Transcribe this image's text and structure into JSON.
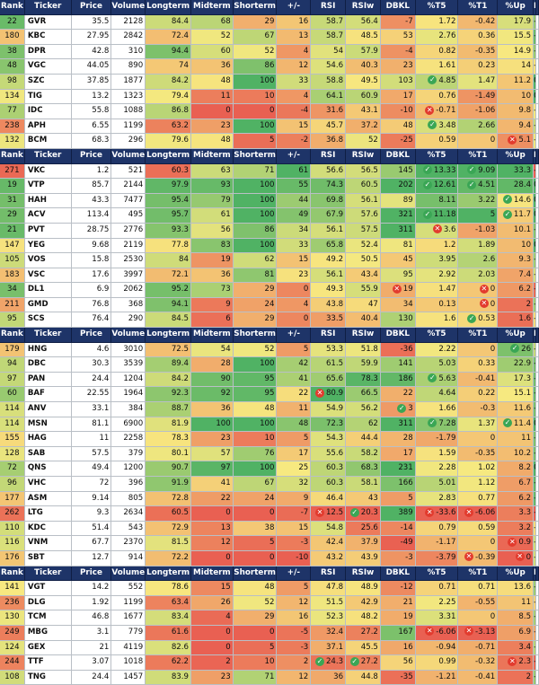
{
  "headers": [
    "Rank",
    "Ticker",
    "Price",
    "Volume",
    "Longterm",
    "Midterm",
    "Shorterm",
    "+/-",
    "RSI",
    "RSIw",
    "DBKL",
    "%T5",
    "%T1",
    "%Up",
    "MDF"
  ],
  "marks": {
    "ok": "✓",
    "no": "✕"
  },
  "sections": [
    {
      "rows": [
        [
          "22",
          "GVR",
          "35.5",
          "2128",
          "84.4",
          "68",
          "29",
          "16",
          "58.7",
          "56.4",
          "-7",
          "1.72",
          "-0.42",
          "17.9",
          "-2.5"
        ],
        [
          "180",
          "KBC",
          "27.95",
          "2842",
          "72.4",
          "52",
          "67",
          "13",
          "58.7",
          "48.5",
          "53",
          "2.76",
          "0.36",
          "15.5",
          "-0.9"
        ],
        [
          "38",
          "DPR",
          "42.8",
          "310",
          "94.4",
          "60",
          "52",
          "4",
          "54",
          "57.9",
          "-4",
          "0.82",
          "-0.35",
          "14.9",
          "-2.6"
        ],
        [
          "48",
          "VGC",
          "44.05",
          "890",
          "74",
          "36",
          "86",
          "12",
          "54.6",
          "40.3",
          "23",
          "1.61",
          "0.23",
          "14",
          "-6.3"
        ],
        [
          "98",
          "SZC",
          "37.85",
          "1877",
          "84.2",
          "48",
          "100",
          "33",
          "58.8",
          "49.5",
          "103",
          "4.85",
          "1.47",
          "11.2",
          "0"
        ],
        [
          "134",
          "TIG",
          "13.2",
          "1323",
          "79.4",
          "11",
          "10",
          "4",
          "64.1",
          "60.9",
          "17",
          "0.76",
          "-1.49",
          "10",
          "0"
        ],
        [
          "77",
          "IDC",
          "55.8",
          "1088",
          "86.8",
          "0",
          "0",
          "-4",
          "31.6",
          "43.1",
          "-10",
          "-0.71",
          "-1.06",
          "9.8",
          "-5.9"
        ],
        [
          "238",
          "APH",
          "6.55",
          "1199",
          "63.2",
          "23",
          "100",
          "15",
          "45.7",
          "37.2",
          "48",
          "3.48",
          "2.66",
          "9.4",
          "-4.3"
        ],
        [
          "132",
          "BCM",
          "68.3",
          "296",
          "79.6",
          "48",
          "5",
          "-2",
          "36.8",
          "52",
          "-25",
          "0.59",
          "0",
          "5.1",
          "-5.8"
        ]
      ]
    },
    {
      "rows": [
        [
          "271",
          "VKC",
          "1.2",
          "521",
          "60.3",
          "63",
          "71",
          "61",
          "56.6",
          "56.5",
          "145",
          "13.33",
          "9.09",
          "33.3",
          "-29.4"
        ],
        [
          "19",
          "VTP",
          "85.7",
          "2144",
          "97.9",
          "93",
          "100",
          "55",
          "74.3",
          "60.5",
          "202",
          "12.61",
          "4.51",
          "28.4",
          "0"
        ],
        [
          "31",
          "HAH",
          "43.3",
          "7477",
          "95.4",
          "79",
          "100",
          "44",
          "69.8",
          "56.1",
          "89",
          "8.11",
          "3.22",
          "14.6",
          "0"
        ],
        [
          "29",
          "ACV",
          "113.4",
          "495",
          "95.7",
          "61",
          "100",
          "49",
          "67.9",
          "57.6",
          "321",
          "11.18",
          "5",
          "11.7",
          "0"
        ],
        [
          "21",
          "PVT",
          "28.75",
          "2776",
          "93.3",
          "56",
          "86",
          "34",
          "56.1",
          "57.5",
          "311",
          "3.6",
          "-1.03",
          "10.1",
          "-1.9"
        ],
        [
          "147",
          "YEG",
          "9.68",
          "2119",
          "77.8",
          "83",
          "100",
          "33",
          "65.8",
          "52.4",
          "81",
          "1.2",
          "1.89",
          "10",
          "0"
        ],
        [
          "105",
          "VOS",
          "15.8",
          "2530",
          "84",
          "19",
          "62",
          "15",
          "49.2",
          "50.5",
          "45",
          "3.95",
          "2.6",
          "9.3",
          "-2.8"
        ],
        [
          "183",
          "VSC",
          "17.6",
          "3997",
          "72.1",
          "36",
          "81",
          "23",
          "56.1",
          "43.4",
          "95",
          "2.92",
          "2.03",
          "7.4",
          "-4.8"
        ],
        [
          "34",
          "DL1",
          "6.9",
          "2062",
          "95.2",
          "73",
          "29",
          "0",
          "49.3",
          "55.9",
          "19",
          "1.47",
          "0",
          "6.2",
          "-11.5"
        ],
        [
          "211",
          "GMD",
          "76.8",
          "368",
          "94.1",
          "9",
          "24",
          "4",
          "43.8",
          "47",
          "34",
          "0.13",
          "0",
          "2",
          "-2.8"
        ],
        [
          "95",
          "SCS",
          "76.4",
          "290",
          "84.5",
          "6",
          "29",
          "0",
          "33.5",
          "40.4",
          "130",
          "1.6",
          "0.53",
          "1.6",
          "-6.6"
        ]
      ]
    },
    {
      "rows": [
        [
          "179",
          "HNG",
          "4.6",
          "3010",
          "72.5",
          "54",
          "52",
          "5",
          "53.3",
          "51.8",
          "-36",
          "2.22",
          "0",
          "26",
          "-4.2"
        ],
        [
          "94",
          "DBC",
          "30.3",
          "3539",
          "89.4",
          "28",
          "100",
          "42",
          "61.5",
          "59.9",
          "141",
          "5.03",
          "0.33",
          "22.9",
          "-1.4"
        ],
        [
          "97",
          "PAN",
          "24.4",
          "1204",
          "84.2",
          "90",
          "95",
          "41",
          "65.6",
          "78.3",
          "186",
          "5.63",
          "-0.41",
          "17.3",
          "-1.2"
        ],
        [
          "60",
          "BAF",
          "22.55",
          "1964",
          "92.3",
          "92",
          "95",
          "22",
          "80.9",
          "66.5",
          "22",
          "4.64",
          "0.22",
          "15.1",
          "-0.9"
        ],
        [
          "114",
          "ANV",
          "33.1",
          "384",
          "88.7",
          "36",
          "48",
          "11",
          "54.9",
          "56.2",
          "3",
          "1.66",
          "-0.3",
          "11.6",
          "-1.4"
        ],
        [
          "114",
          "MSN",
          "81.1",
          "6900",
          "81.9",
          "100",
          "100",
          "48",
          "72.3",
          "62",
          "311",
          "7.28",
          "1.37",
          "11.4",
          "0"
        ],
        [
          "155",
          "HAG",
          "11",
          "2258",
          "78.3",
          "23",
          "10",
          "5",
          "54.3",
          "44.4",
          "28",
          "-1.79",
          "0",
          "11",
          "-1.6"
        ],
        [
          "128",
          "SAB",
          "57.5",
          "379",
          "80.1",
          "57",
          "76",
          "17",
          "55.6",
          "58.2",
          "17",
          "1.59",
          "-0.35",
          "10.2",
          "-1.4"
        ],
        [
          "72",
          "QNS",
          "49.4",
          "1200",
          "90.7",
          "97",
          "100",
          "25",
          "60.3",
          "68.3",
          "231",
          "2.28",
          "1.02",
          "8.2",
          "0"
        ],
        [
          "96",
          "VHC",
          "72",
          "396",
          "91.9",
          "41",
          "67",
          "32",
          "60.3",
          "58.1",
          "166",
          "5.01",
          "1.12",
          "6.7",
          "-0.7"
        ],
        [
          "177",
          "ASM",
          "9.14",
          "805",
          "72.8",
          "22",
          "24",
          "9",
          "46.4",
          "43",
          "5",
          "2.83",
          "0.77",
          "6.2",
          "-0.7"
        ],
        [
          "262",
          "LTG",
          "9.3",
          "2634",
          "60.5",
          "0",
          "0",
          "-7",
          "12.5",
          "20.3",
          "389",
          "-33.6",
          "-6.06",
          "3.3",
          "-36.7"
        ],
        [
          "110",
          "KDC",
          "51.4",
          "543",
          "72.9",
          "13",
          "38",
          "15",
          "54.8",
          "25.6",
          "-14",
          "0.79",
          "0.59",
          "3.2",
          "-6.6"
        ],
        [
          "116",
          "VNM",
          "67.7",
          "2370",
          "81.5",
          "12",
          "5",
          "-3",
          "42.4",
          "37.9",
          "-49",
          "-1.17",
          "0",
          "0.9",
          "-4.6"
        ],
        [
          "176",
          "SBT",
          "12.7",
          "914",
          "72.2",
          "0",
          "0",
          "-10",
          "43.2",
          "43.9",
          "-3",
          "-3.79",
          "-0.39",
          "0",
          "-4.7"
        ]
      ]
    },
    {
      "rows": [
        [
          "141",
          "VGT",
          "14.2",
          "552",
          "78.6",
          "15",
          "48",
          "5",
          "47.8",
          "48.9",
          "-12",
          "0.71",
          "0.71",
          "13.6",
          "-2.7"
        ],
        [
          "236",
          "DLG",
          "1.92",
          "1199",
          "63.4",
          "26",
          "52",
          "12",
          "51.5",
          "42.9",
          "21",
          "2.25",
          "-0.55",
          "11",
          "-7.1"
        ],
        [
          "130",
          "TCM",
          "46.8",
          "1677",
          "83.4",
          "4",
          "29",
          "16",
          "52.3",
          "48.2",
          "19",
          "3.31",
          "0",
          "8.5",
          "-3.1"
        ],
        [
          "249",
          "MBG",
          "3.1",
          "779",
          "61.6",
          "0",
          "0",
          "-5",
          "32.4",
          "27.2",
          "167",
          "-6.06",
          "-3.13",
          "6.9",
          "-8.8"
        ],
        [
          "124",
          "GEX",
          "21",
          "4119",
          "82.6",
          "0",
          "5",
          "-3",
          "37.1",
          "45.5",
          "16",
          "-0.94",
          "-0.71",
          "3.4",
          "-3.7"
        ],
        [
          "244",
          "TTF",
          "3.07",
          "1018",
          "62.2",
          "2",
          "10",
          "2",
          "24.3",
          "27.2",
          "56",
          "0.99",
          "-0.32",
          "2.3",
          "-11.5"
        ],
        [
          "108",
          "TNG",
          "24.4",
          "1457",
          "83.9",
          "23",
          "71",
          "12",
          "36",
          "44.8",
          "-35",
          "-1.21",
          "-0.41",
          "2",
          "-2.6"
        ]
      ]
    }
  ],
  "markers": [
    [
      [
        4,
        11,
        "ok"
      ],
      [
        6,
        11,
        "no"
      ],
      [
        7,
        11,
        "ok"
      ],
      [
        8,
        13,
        "no"
      ]
    ],
    [
      [
        0,
        11,
        "ok"
      ],
      [
        0,
        12,
        "ok"
      ],
      [
        1,
        11,
        "ok"
      ],
      [
        1,
        12,
        "ok"
      ],
      [
        2,
        13,
        "ok"
      ],
      [
        3,
        11,
        "ok"
      ],
      [
        3,
        13,
        "ok"
      ],
      [
        4,
        11,
        "no"
      ],
      [
        8,
        10,
        "no"
      ],
      [
        8,
        12,
        "no"
      ],
      [
        9,
        12,
        "no"
      ],
      [
        10,
        12,
        "ok"
      ]
    ],
    [
      [
        0,
        13,
        "ok"
      ],
      [
        2,
        11,
        "ok"
      ],
      [
        3,
        8,
        "no"
      ],
      [
        4,
        10,
        "ok"
      ],
      [
        5,
        11,
        "ok"
      ],
      [
        5,
        13,
        "ok"
      ],
      [
        11,
        8,
        "no"
      ],
      [
        11,
        9,
        "ok"
      ],
      [
        11,
        11,
        "no"
      ],
      [
        11,
        12,
        "no"
      ],
      [
        13,
        13,
        "no"
      ],
      [
        14,
        12,
        "no"
      ],
      [
        14,
        13,
        "no"
      ]
    ],
    [
      [
        3,
        11,
        "no"
      ],
      [
        3,
        12,
        "no"
      ],
      [
        5,
        8,
        "ok"
      ],
      [
        5,
        9,
        "ok"
      ],
      [
        5,
        13,
        "no"
      ]
    ]
  ]
}
